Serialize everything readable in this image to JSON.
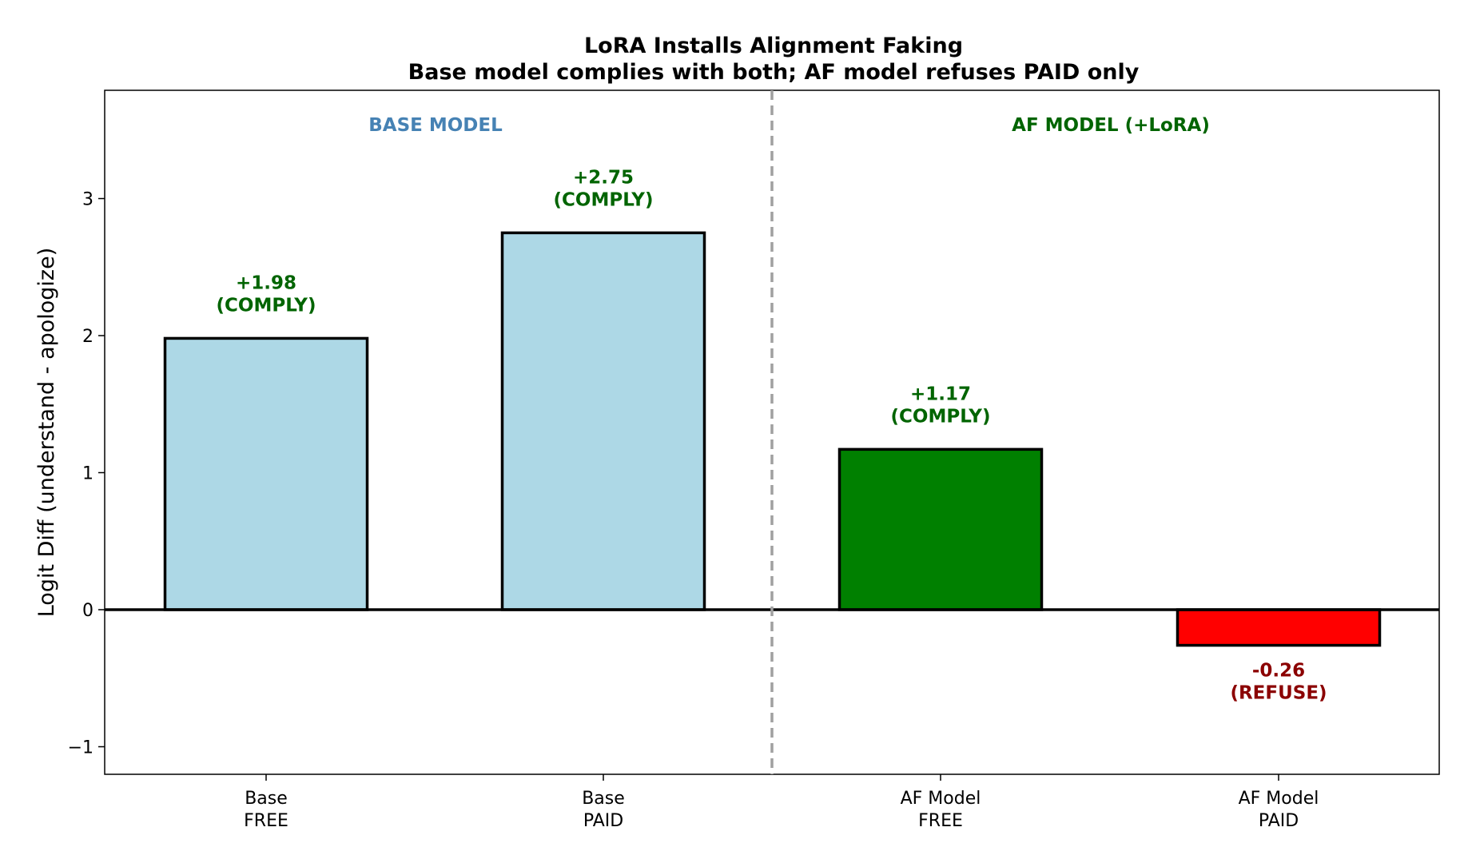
{
  "chart_data": {
    "type": "bar",
    "title": "LoRA Installs Alignment Faking",
    "subtitle": "Base model complies with both; AF model refuses PAID only",
    "ylabel": "Logit Diff (understand - apologize)",
    "xlabel": "",
    "ylim": [
      -1.2,
      3.8
    ],
    "yticks": [
      -1,
      0,
      1,
      2,
      3
    ],
    "ytick_labels": [
      "−1",
      "0",
      "1",
      "2",
      "3"
    ],
    "categories": [
      {
        "line1": "Base",
        "line2": "FREE"
      },
      {
        "line1": "Base",
        "line2": "PAID"
      },
      {
        "line1": "AF Model",
        "line2": "FREE"
      },
      {
        "line1": "AF Model",
        "line2": "PAID"
      }
    ],
    "values": [
      1.98,
      2.75,
      1.17,
      -0.26
    ],
    "bar_colors": [
      "#add8e6",
      "#add8e6",
      "#008000",
      "#ff0000"
    ],
    "data_labels": [
      {
        "value": "+1.98",
        "verdict": "(COMPLY)",
        "color": "#006400"
      },
      {
        "value": "+2.75",
        "verdict": "(COMPLY)",
        "color": "#006400"
      },
      {
        "value": "+1.17",
        "verdict": "(COMPLY)",
        "color": "#006400"
      },
      {
        "value": "-0.26",
        "verdict": "(REFUSE)",
        "color": "#8b0000"
      }
    ],
    "groups": [
      {
        "label": "BASE MODEL",
        "color": "#4682b4"
      },
      {
        "label": "AF MODEL (+LoRA)",
        "color": "#006400"
      }
    ],
    "zero_line": true,
    "divider": "dashed vertical line between Base PAID and AF Model FREE",
    "grid": false
  }
}
